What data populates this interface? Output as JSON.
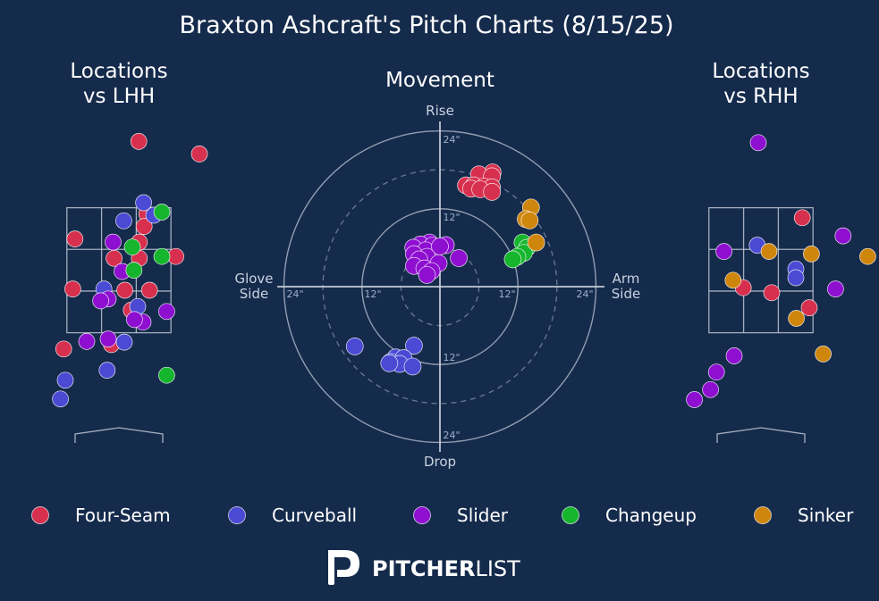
{
  "colors": {
    "background": "#152b4c",
    "grid": "#c8cfdb",
    "Four-Seam": "#d7304f",
    "Curveball": "#4a4ad4",
    "Slider": "#8e0fd0",
    "Changeup": "#16b52e",
    "Sinker": "#cf860c"
  },
  "chart_data": {
    "title": "Braxton Ashcraft's Pitch Charts (8/15/25)",
    "legend": {
      "placement": "bottom",
      "entries": [
        "Four-Seam",
        "Curveball",
        "Slider",
        "Changeup",
        "Sinker"
      ]
    },
    "panels": [
      {
        "id": "lhh",
        "type": "scatter",
        "title_lines": [
          "Locations",
          "vs LHH"
        ],
        "points": [
          {
            "x": 0.37,
            "y": 4.48,
            "pitch": "Four-Seam"
          },
          {
            "x": 1.5,
            "y": 4.28,
            "pitch": "Four-Seam"
          },
          {
            "x": -0.82,
            "y": 2.92,
            "pitch": "Four-Seam"
          },
          {
            "x": 0.52,
            "y": 3.32,
            "pitch": "Four-Seam"
          },
          {
            "x": 0.47,
            "y": 3.12,
            "pitch": "Four-Seam"
          },
          {
            "x": 0.38,
            "y": 2.87,
            "pitch": "Four-Seam"
          },
          {
            "x": -0.09,
            "y": 2.61,
            "pitch": "Four-Seam"
          },
          {
            "x": 0.38,
            "y": 2.61,
            "pitch": "Four-Seam"
          },
          {
            "x": 1.06,
            "y": 2.64,
            "pitch": "Four-Seam"
          },
          {
            "x": -0.86,
            "y": 2.12,
            "pitch": "Four-Seam"
          },
          {
            "x": 0.11,
            "y": 2.1,
            "pitch": "Four-Seam"
          },
          {
            "x": 0.57,
            "y": 2.1,
            "pitch": "Four-Seam"
          },
          {
            "x": 0.23,
            "y": 1.78,
            "pitch": "Four-Seam"
          },
          {
            "x": -0.14,
            "y": 1.23,
            "pitch": "Four-Seam"
          },
          {
            "x": -1.03,
            "y": 1.16,
            "pitch": "Four-Seam"
          },
          {
            "x": 0.46,
            "y": 3.5,
            "pitch": "Curveball"
          },
          {
            "x": 0.65,
            "y": 3.3,
            "pitch": "Curveball"
          },
          {
            "x": 0.09,
            "y": 3.21,
            "pitch": "Curveball"
          },
          {
            "x": -0.28,
            "y": 2.12,
            "pitch": "Curveball"
          },
          {
            "x": 0.35,
            "y": 1.84,
            "pitch": "Curveball"
          },
          {
            "x": 0.1,
            "y": 1.27,
            "pitch": "Curveball"
          },
          {
            "x": -0.22,
            "y": 0.82,
            "pitch": "Curveball"
          },
          {
            "x": -1.0,
            "y": 0.66,
            "pitch": "Curveball"
          },
          {
            "x": -1.09,
            "y": 0.36,
            "pitch": "Curveball"
          },
          {
            "x": -0.11,
            "y": 2.87,
            "pitch": "Slider"
          },
          {
            "x": 0.06,
            "y": 2.4,
            "pitch": "Slider"
          },
          {
            "x": -0.2,
            "y": 1.96,
            "pitch": "Slider"
          },
          {
            "x": -0.34,
            "y": 1.93,
            "pitch": "Slider"
          },
          {
            "x": 0.45,
            "y": 1.59,
            "pitch": "Slider"
          },
          {
            "x": 0.29,
            "y": 1.63,
            "pitch": "Slider"
          },
          {
            "x": 0.89,
            "y": 1.76,
            "pitch": "Slider"
          },
          {
            "x": -0.6,
            "y": 1.28,
            "pitch": "Slider"
          },
          {
            "x": -0.2,
            "y": 1.32,
            "pitch": "Slider"
          },
          {
            "x": 0.8,
            "y": 3.35,
            "pitch": "Changeup"
          },
          {
            "x": 0.25,
            "y": 2.79,
            "pitch": "Changeup"
          },
          {
            "x": 0.8,
            "y": 2.64,
            "pitch": "Changeup"
          },
          {
            "x": 0.28,
            "y": 2.42,
            "pitch": "Changeup"
          },
          {
            "x": 0.89,
            "y": 0.74,
            "pitch": "Changeup"
          }
        ]
      },
      {
        "id": "movement",
        "type": "scatter",
        "title": "Movement",
        "axis_labels": {
          "top": "Rise",
          "bottom": "Drop",
          "left": [
            "Glove",
            "Side"
          ],
          "right": [
            "Arm",
            "Side"
          ]
        },
        "tick_labels": [
          "24\"",
          "12\"",
          "12\"",
          "24\"",
          "24\"",
          "12\"",
          "12\"",
          "24\""
        ],
        "rings": [
          6,
          12,
          18,
          24
        ],
        "points": [
          {
            "x": 8.1,
            "y": 17.6,
            "pitch": "Four-Seam"
          },
          {
            "x": 6.0,
            "y": 17.3,
            "pitch": "Four-Seam"
          },
          {
            "x": 8.0,
            "y": 17.0,
            "pitch": "Four-Seam"
          },
          {
            "x": 4.0,
            "y": 15.6,
            "pitch": "Four-Seam"
          },
          {
            "x": 5.2,
            "y": 15.6,
            "pitch": "Four-Seam"
          },
          {
            "x": 6.8,
            "y": 15.4,
            "pitch": "Four-Seam"
          },
          {
            "x": 8.0,
            "y": 15.3,
            "pitch": "Four-Seam"
          },
          {
            "x": 4.8,
            "y": 15.1,
            "pitch": "Four-Seam"
          },
          {
            "x": 6.2,
            "y": 15.0,
            "pitch": "Four-Seam"
          },
          {
            "x": 8.0,
            "y": 14.6,
            "pitch": "Four-Seam"
          },
          {
            "x": -13.1,
            "y": -9.2,
            "pitch": "Curveball"
          },
          {
            "x": -4.0,
            "y": -9.1,
            "pitch": "Curveball"
          },
          {
            "x": -6.8,
            "y": -10.9,
            "pitch": "Curveball"
          },
          {
            "x": -5.6,
            "y": -11.0,
            "pitch": "Curveball"
          },
          {
            "x": -7.6,
            "y": -11.6,
            "pitch": "Curveball"
          },
          {
            "x": -6.2,
            "y": -11.9,
            "pitch": "Curveball"
          },
          {
            "x": -4.2,
            "y": -12.3,
            "pitch": "Curveball"
          },
          {
            "x": -7.8,
            "y": -11.8,
            "pitch": "Curveball"
          },
          {
            "x": -1.6,
            "y": 6.8,
            "pitch": "Slider"
          },
          {
            "x": -3.0,
            "y": 6.5,
            "pitch": "Slider"
          },
          {
            "x": -1.2,
            "y": 6.3,
            "pitch": "Slider"
          },
          {
            "x": 0.9,
            "y": 6.4,
            "pitch": "Slider"
          },
          {
            "x": -4.1,
            "y": 6.0,
            "pitch": "Slider"
          },
          {
            "x": -2.2,
            "y": 5.6,
            "pitch": "Slider"
          },
          {
            "x": 0.0,
            "y": 6.2,
            "pitch": "Slider"
          },
          {
            "x": -4.0,
            "y": 5.0,
            "pitch": "Slider"
          },
          {
            "x": -2.0,
            "y": 4.6,
            "pitch": "Slider"
          },
          {
            "x": -3.2,
            "y": 4.2,
            "pitch": "Slider"
          },
          {
            "x": -0.2,
            "y": 3.6,
            "pitch": "Slider"
          },
          {
            "x": -4.0,
            "y": 3.2,
            "pitch": "Slider"
          },
          {
            "x": -2.4,
            "y": 2.8,
            "pitch": "Slider"
          },
          {
            "x": 2.9,
            "y": 4.4,
            "pitch": "Slider"
          },
          {
            "x": -1.3,
            "y": 2.4,
            "pitch": "Slider"
          },
          {
            "x": -2.0,
            "y": 1.8,
            "pitch": "Slider"
          },
          {
            "x": 12.7,
            "y": 6.8,
            "pitch": "Changeup"
          },
          {
            "x": 13.4,
            "y": 6.0,
            "pitch": "Changeup"
          },
          {
            "x": 12.9,
            "y": 5.2,
            "pitch": "Changeup"
          },
          {
            "x": 11.9,
            "y": 4.6,
            "pitch": "Changeup"
          },
          {
            "x": 11.2,
            "y": 4.2,
            "pitch": "Changeup"
          },
          {
            "x": 14.0,
            "y": 12.2,
            "pitch": "Sinker"
          },
          {
            "x": 13.2,
            "y": 10.4,
            "pitch": "Sinker"
          },
          {
            "x": 13.8,
            "y": 10.2,
            "pitch": "Sinker"
          },
          {
            "x": 14.8,
            "y": 6.8,
            "pitch": "Sinker"
          }
        ]
      },
      {
        "id": "rhh",
        "type": "scatter",
        "title_lines": [
          "Locations",
          "vs RHH"
        ],
        "points": [
          {
            "x": 0.77,
            "y": 3.26,
            "pitch": "Four-Seam"
          },
          {
            "x": -0.33,
            "y": 2.14,
            "pitch": "Four-Seam"
          },
          {
            "x": 0.2,
            "y": 2.06,
            "pitch": "Four-Seam"
          },
          {
            "x": 0.9,
            "y": 1.82,
            "pitch": "Four-Seam"
          },
          {
            "x": -0.07,
            "y": 2.82,
            "pitch": "Curveball"
          },
          {
            "x": 0.65,
            "y": 2.44,
            "pitch": "Curveball"
          },
          {
            "x": 0.65,
            "y": 2.3,
            "pitch": "Curveball"
          },
          {
            "x": -0.05,
            "y": 4.46,
            "pitch": "Slider"
          },
          {
            "x": 1.53,
            "y": 2.97,
            "pitch": "Slider"
          },
          {
            "x": -0.69,
            "y": 2.72,
            "pitch": "Slider"
          },
          {
            "x": 1.39,
            "y": 2.12,
            "pitch": "Slider"
          },
          {
            "x": -0.5,
            "y": 1.05,
            "pitch": "Slider"
          },
          {
            "x": -0.83,
            "y": 0.79,
            "pitch": "Slider"
          },
          {
            "x": -0.94,
            "y": 0.51,
            "pitch": "Slider"
          },
          {
            "x": -1.24,
            "y": 0.35,
            "pitch": "Slider"
          },
          {
            "x": 0.15,
            "y": 2.72,
            "pitch": "Sinker"
          },
          {
            "x": 0.94,
            "y": 2.68,
            "pitch": "Sinker"
          },
          {
            "x": 1.99,
            "y": 2.64,
            "pitch": "Sinker"
          },
          {
            "x": -0.52,
            "y": 2.26,
            "pitch": "Sinker"
          },
          {
            "x": 0.66,
            "y": 1.65,
            "pitch": "Sinker"
          },
          {
            "x": 1.16,
            "y": 1.08,
            "pitch": "Sinker"
          }
        ]
      }
    ]
  },
  "branding": {
    "name_bold": "PITCHER",
    "name_light": "LIST"
  }
}
